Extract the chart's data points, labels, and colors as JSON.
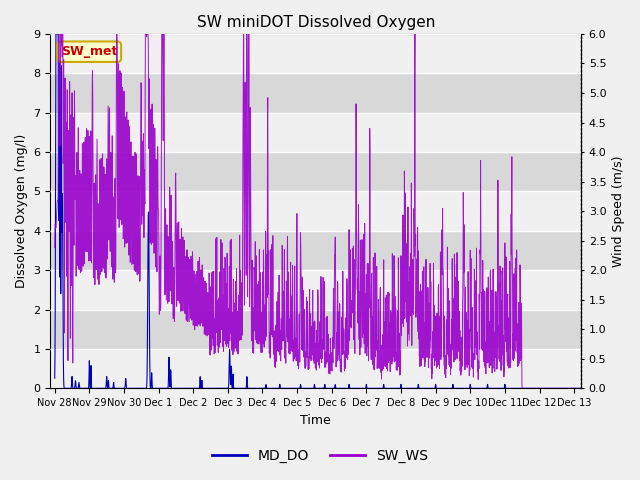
{
  "title": "SW miniDOT Dissolved Oxygen",
  "xlabel": "Time",
  "ylabel_left": "Dissolved Oxygen (mg/l)",
  "ylabel_right": "Wind Speed (m/s)",
  "ylim_left": [
    0,
    9.0
  ],
  "ylim_right": [
    0,
    6.0
  ],
  "yticks_left": [
    0.0,
    1.0,
    2.0,
    3.0,
    4.0,
    5.0,
    6.0,
    7.0,
    8.0,
    9.0
  ],
  "yticks_right": [
    0.0,
    0.5,
    1.0,
    1.5,
    2.0,
    2.5,
    3.0,
    3.5,
    4.0,
    4.5,
    5.0,
    5.5,
    6.0
  ],
  "color_do": "#0000bb",
  "color_ws": "#9900cc",
  "annotation_text": "SW_met",
  "annotation_color": "#cc0000",
  "annotation_bg": "#ffffcc",
  "annotation_border": "#ccaa00",
  "legend_labels": [
    "MD_DO",
    "SW_WS"
  ],
  "background_color": "#e8e8e8",
  "stripe_color_light": "#f0f0f0",
  "stripe_color_dark": "#dcdcdc",
  "grid_color": "#ffffff",
  "tick_labels": [
    "Nov 28",
    "Nov 29",
    "Nov 30",
    "Dec 1",
    "Dec 2",
    "Dec 3",
    "Dec 4",
    "Dec 5",
    "Dec 6",
    "Dec 7",
    "Dec 8",
    "Dec 9",
    "Dec 10",
    "Dec 11",
    "Dec 12",
    "Dec 13"
  ]
}
